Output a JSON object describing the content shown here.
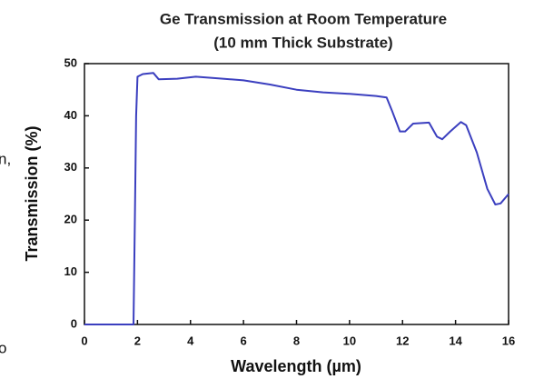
{
  "chart_data": {
    "type": "line",
    "title": [
      "Ge Transmission at Room Temperature",
      "(10 mm Thick Substrate)"
    ],
    "x_label": "Wavelength (µm)",
    "y_label": "Transmission (%)",
    "annotations": [
      "n,",
      "o"
    ],
    "x": [
      0,
      1.85,
      1.9,
      1.95,
      2.0,
      2.2,
      2.6,
      2.8,
      3.5,
      4.2,
      5,
      6,
      7,
      8,
      9,
      10,
      11,
      11.4,
      11.6,
      11.9,
      12.1,
      12.4,
      13,
      13.3,
      13.5,
      13.8,
      14.2,
      14.4,
      14.8,
      15.2,
      15.5,
      15.7,
      16
    ],
    "values": [
      0,
      0,
      20,
      40,
      47.5,
      48,
      48.2,
      47,
      47.1,
      47.5,
      47.2,
      46.8,
      46,
      45,
      44.5,
      44.2,
      43.8,
      43.5,
      41,
      37,
      37,
      38.5,
      38.7,
      36,
      35.5,
      37,
      38.8,
      38.2,
      33,
      26,
      23,
      23.2,
      25
    ],
    "color": "#3b3fbf",
    "xlim": [
      0,
      16
    ],
    "xticks": [
      0,
      2,
      4,
      6,
      8,
      10,
      12,
      14,
      16
    ],
    "ylim": [
      0,
      50
    ],
    "yticks": [
      0,
      10,
      20,
      30,
      40,
      50
    ]
  }
}
